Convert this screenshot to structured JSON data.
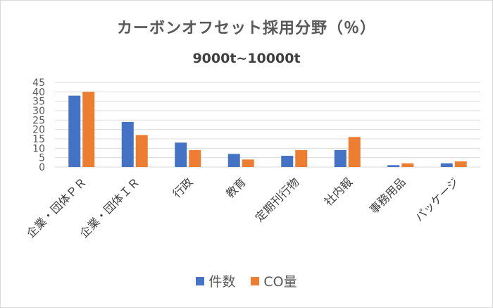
{
  "chart_data": {
    "type": "bar",
    "title": "カーボンオフセット採用分野（％）",
    "subtitle": "9000t~10000t",
    "categories": [
      "企業・団体ＰＲ",
      "企業・団体ＩＲ",
      "行政",
      "教育",
      "定期刊行物",
      "社内報",
      "事務用品",
      "パッケージ"
    ],
    "series": [
      {
        "name": "件数",
        "color": "#4472c4",
        "values": [
          38,
          24,
          13,
          7,
          6,
          9,
          1,
          2
        ]
      },
      {
        "name": "CO量",
        "color": "#ed7d31",
        "values": [
          40,
          17,
          9,
          4,
          9,
          16,
          2,
          3
        ]
      }
    ],
    "ylim": [
      0,
      45
    ],
    "yticks": [
      0,
      5,
      10,
      15,
      20,
      25,
      30,
      35,
      40,
      45
    ],
    "grid": true,
    "legend": "bottom",
    "xlabel": "",
    "ylabel": ""
  }
}
